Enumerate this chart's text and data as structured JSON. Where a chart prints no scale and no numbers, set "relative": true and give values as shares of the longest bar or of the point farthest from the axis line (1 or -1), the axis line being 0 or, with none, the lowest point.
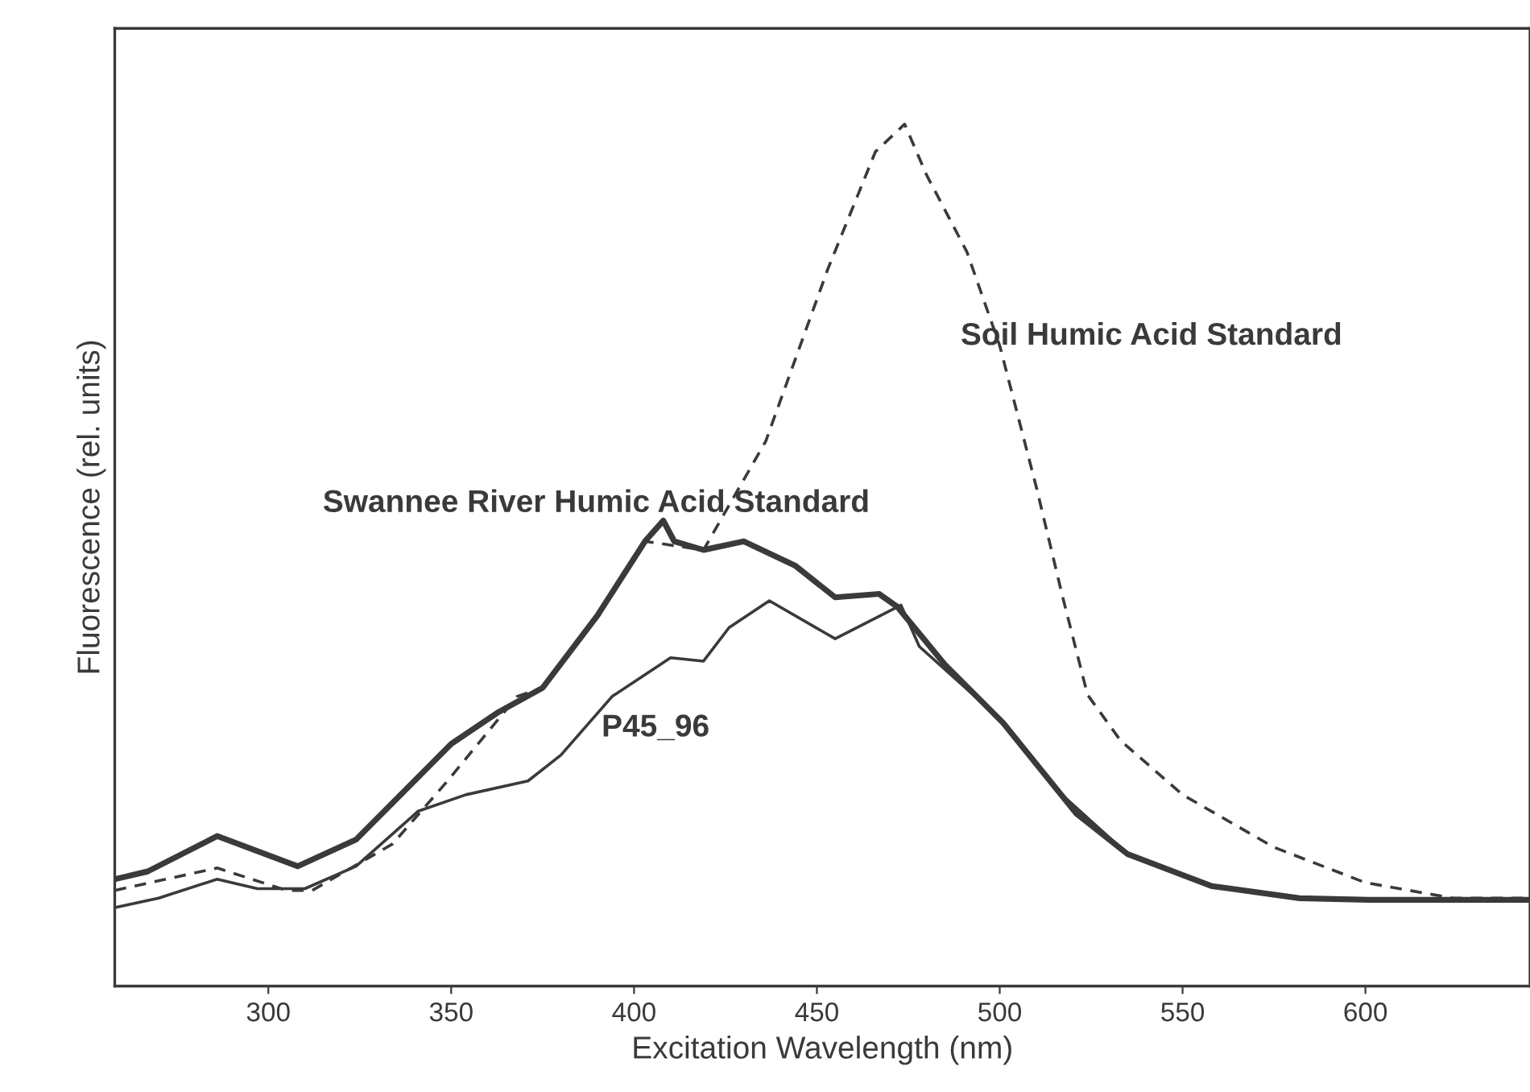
{
  "chart_data": {
    "type": "line",
    "relative": true,
    "xlabel": "Excitation Wavelength (nm)",
    "ylabel": "Fluorescence (rel. units)",
    "xlim": [
      258,
      645
    ],
    "xticks": [
      300,
      350,
      400,
      450,
      500,
      550,
      600
    ],
    "tick_labels": "x",
    "grid": false,
    "legend": false,
    "marker": "none",
    "series": [
      {
        "name": "Swannee River Humic Acid Standard",
        "color": "#3a3a3a",
        "line_style": "solid",
        "x": [
          258,
          267,
          286,
          308,
          324,
          350,
          363,
          375,
          390,
          403,
          408,
          411,
          419,
          430,
          444,
          455,
          467,
          472,
          485,
          501,
          521,
          535,
          558,
          582,
          601,
          645
        ],
        "values": [
          0.124,
          0.133,
          0.174,
          0.139,
          0.17,
          0.281,
          0.318,
          0.346,
          0.43,
          0.516,
          0.54,
          0.516,
          0.506,
          0.516,
          0.488,
          0.451,
          0.455,
          0.44,
          0.373,
          0.305,
          0.2,
          0.153,
          0.116,
          0.102,
          0.1,
          0.1
        ]
      },
      {
        "name": "Soil Humic Acid Standard",
        "color": "#3a3a3a",
        "line_style": "dashed",
        "x": [
          258,
          286,
          305,
          312,
          334,
          349,
          368,
          375,
          390,
          403,
          419,
          436,
          453,
          466,
          474,
          480,
          491,
          500,
          510,
          517,
          524,
          533,
          550,
          575,
          600,
          624,
          645
        ],
        "values": [
          0.111,
          0.137,
          0.111,
          0.111,
          0.165,
          0.238,
          0.336,
          0.346,
          0.43,
          0.516,
          0.506,
          0.632,
          0.832,
          0.968,
          1.0,
          0.941,
          0.852,
          0.743,
          0.579,
          0.455,
          0.338,
          0.285,
          0.222,
          0.161,
          0.12,
          0.102,
          0.102
        ]
      },
      {
        "name": "P45_96",
        "color": "#3a3a3a",
        "line_style": "solid",
        "x": [
          258,
          270,
          286,
          297,
          310,
          324,
          341,
          354,
          371,
          380,
          394,
          410,
          419,
          426,
          437,
          455,
          473,
          478,
          498,
          517,
          535,
          558,
          582,
          601,
          645
        ],
        "values": [
          0.091,
          0.102,
          0.124,
          0.113,
          0.113,
          0.139,
          0.203,
          0.222,
          0.238,
          0.268,
          0.336,
          0.381,
          0.377,
          0.416,
          0.447,
          0.403,
          0.442,
          0.394,
          0.318,
          0.222,
          0.153,
          0.116,
          0.102,
          0.1,
          0.1
        ]
      }
    ]
  }
}
